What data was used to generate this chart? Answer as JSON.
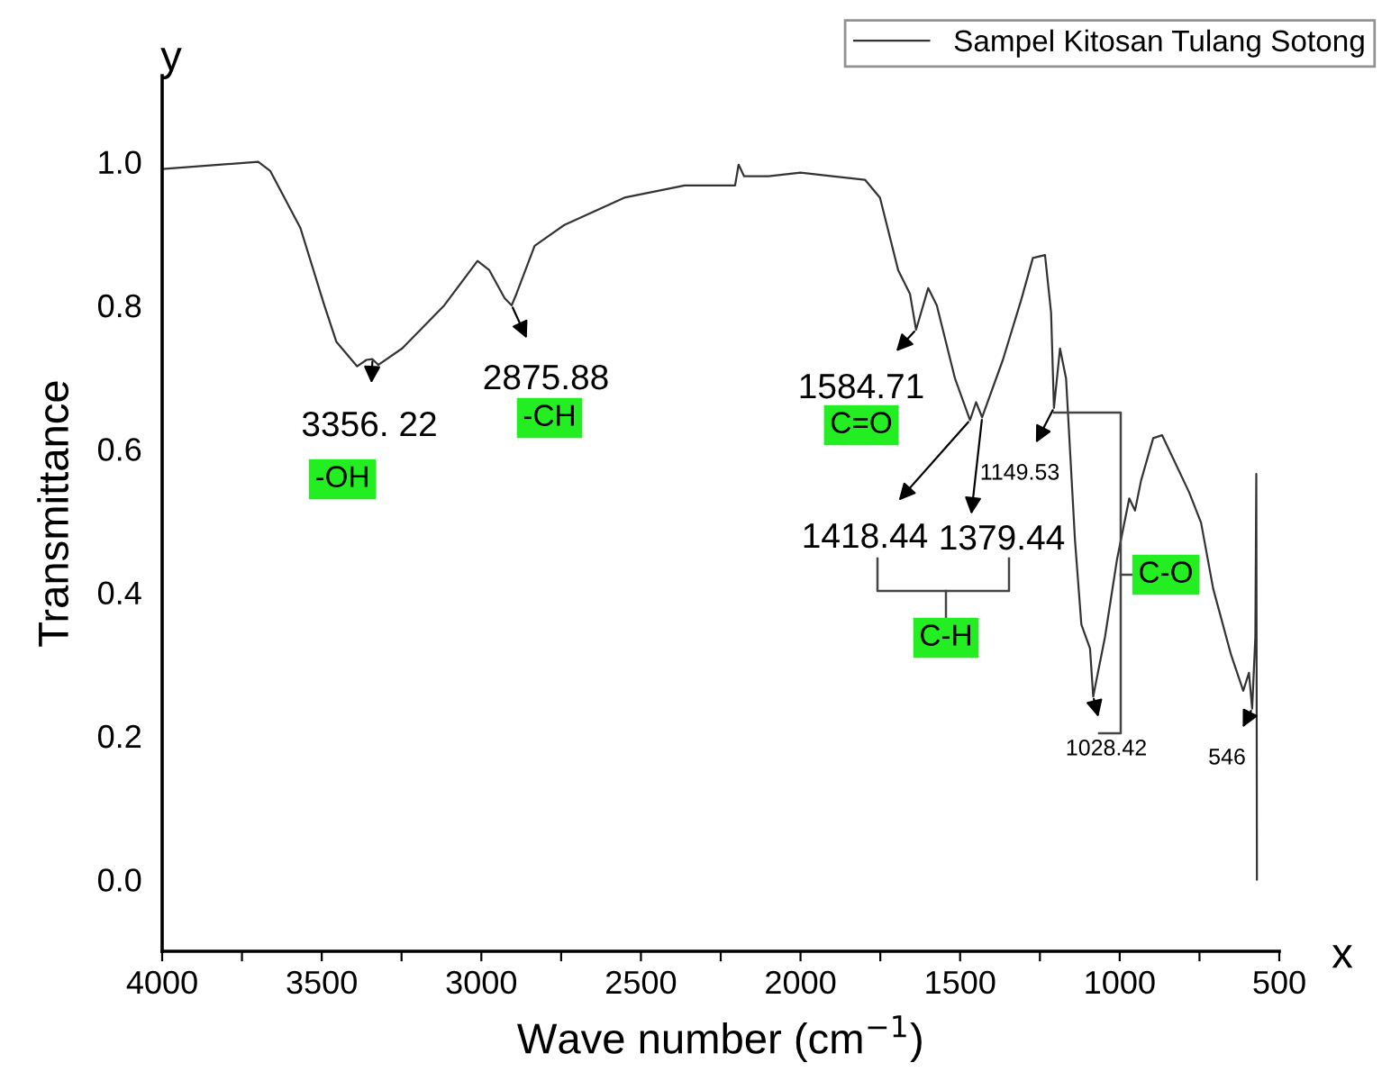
{
  "chart_data": {
    "type": "line",
    "xlabel": "Wave number (cm$^{−1}$)",
    "ylabel": "Transmittance",
    "xlim": [
      4000,
      500
    ],
    "ylim": [
      -0.1,
      1.12
    ],
    "xticks": [
      4000,
      {
        "value": 3750,
        "label": null
      },
      3500,
      {
        "value": 3250,
        "label": null
      },
      3000,
      {
        "value": 2750,
        "label": null
      },
      2500,
      {
        "value": 2250,
        "label": null
      },
      2000,
      {
        "value": 1750,
        "label": null
      },
      1500,
      {
        "value": 1250,
        "label": null
      },
      1000,
      {
        "value": 750,
        "label": null
      },
      500
    ],
    "yticks": [
      {
        "value": 0,
        "label": "0.0"
      },
      {
        "value": 0.2,
        "label": "0.2"
      },
      {
        "value": 0.4,
        "label": "0.4"
      },
      {
        "value": 0.6,
        "label": "0.6"
      },
      {
        "value": 0.8,
        "label": "0.8"
      },
      {
        "value": 1.0,
        "label": "1.0"
      }
    ],
    "grid": false,
    "legend": "top right",
    "series": [
      {
        "name": "Sampel Kitosan Tulang Sotong",
        "color": "#333333",
        "x": [
          4000,
          3699,
          3661,
          3567,
          3492,
          3454,
          3389,
          3360,
          3341,
          3323,
          3248,
          3116,
          3012,
          2975,
          2927,
          2905,
          2890,
          2833,
          2740,
          2552,
          2363,
          2205,
          2194,
          2177,
          2100,
          2000,
          1900,
          1798,
          1751,
          1694,
          1657,
          1638,
          1600,
          1573,
          1516,
          1469,
          1450,
          1431,
          1366,
          1309,
          1272,
          1234,
          1215,
          1206,
          1187,
          1168,
          1140,
          1120,
          1093,
          1083,
          1046,
          1008,
          970,
          952,
          933,
          895,
          867,
          782,
          745,
          707,
          651,
          613,
          595,
          585,
          575,
          572,
          570
        ],
        "values": [
          0.99,
          1.0,
          0.987,
          0.908,
          0.8,
          0.749,
          0.715,
          0.724,
          0.725,
          0.717,
          0.74,
          0.8,
          0.862,
          0.849,
          0.81,
          0.8,
          0.816,
          0.883,
          0.912,
          0.95,
          0.967,
          0.967,
          0.996,
          0.98,
          0.98,
          0.985,
          0.98,
          0.975,
          0.95,
          0.849,
          0.816,
          0.766,
          0.824,
          0.8,
          0.698,
          0.64,
          0.665,
          0.644,
          0.724,
          0.807,
          0.866,
          0.87,
          0.79,
          0.657,
          0.74,
          0.698,
          0.472,
          0.355,
          0.322,
          0.255,
          0.338,
          0.447,
          0.531,
          0.514,
          0.556,
          0.615,
          0.619,
          0.539,
          0.497,
          0.405,
          0.313,
          0.263,
          0.288,
          0.238,
          0.338,
          0.565,
          0.0
        ]
      }
    ],
    "annotations": [
      {
        "text": "3356. 22",
        "x": 3341,
        "y": 0.725
      },
      "-OH",
      {
        "text": "2875.88",
        "x": 2905,
        "y": 0.8
      },
      "-CH",
      {
        "text": "1584.71",
        "x": 1638,
        "y": 0.766
      },
      "C=O",
      {
        "text": "1418.44",
        "x": 1469,
        "y": 0.64
      },
      {
        "text": "1379.44",
        "x": 1431,
        "y": 0.644
      },
      "C-H",
      {
        "text": "1149.53",
        "x": 1206,
        "y": 0.657
      },
      "C-O",
      {
        "text": "1028.42",
        "x": 1083,
        "y": 0.255
      },
      {
        "text": "546",
        "x": 585,
        "y": 0.238
      },
      "x",
      "y"
    ]
  }
}
